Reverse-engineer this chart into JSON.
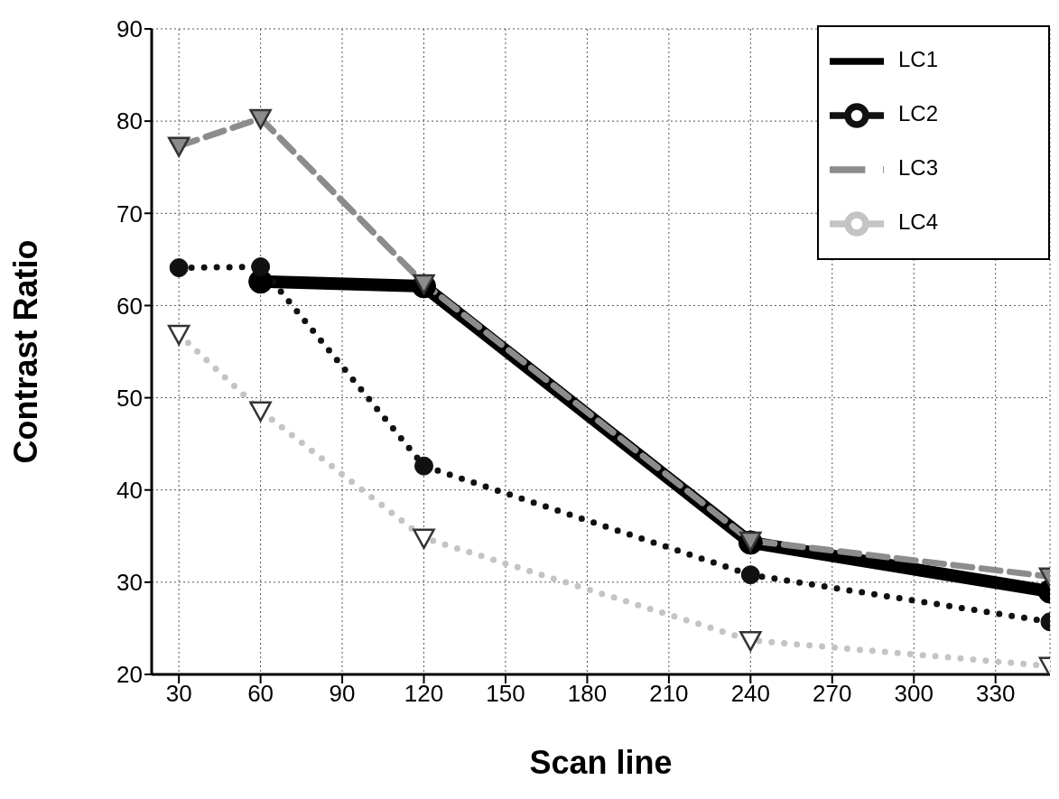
{
  "chart_data": {
    "type": "line",
    "xlabel": "Scan line",
    "ylabel": "Contrast Ratio",
    "xlim": [
      20,
      350
    ],
    "xticks": [
      30,
      60,
      90,
      120,
      150,
      180,
      210,
      240,
      270,
      300,
      330
    ],
    "ylim": [
      20,
      90
    ],
    "yticks": [
      20,
      30,
      40,
      50,
      60,
      70,
      80,
      90
    ],
    "grid": true,
    "legend": "top right",
    "series": [
      {
        "name": "LC1",
        "color": "#000000",
        "x": [
          60,
          120,
          240,
          350
        ],
        "values": [
          62.6,
          62.1,
          34.3,
          29.0
        ],
        "marker": "circle",
        "line_style": "solid"
      },
      {
        "name": "LC2",
        "color": "#111111",
        "x": [
          30,
          60,
          120,
          240,
          350
        ],
        "values": [
          64.1,
          64.2,
          42.6,
          30.8,
          25.7
        ],
        "marker": "circle",
        "line_style": "dotted"
      },
      {
        "name": "LC3",
        "color": "#8c8c8c",
        "x": [
          30,
          60,
          120,
          240,
          350
        ],
        "values": [
          77.3,
          80.3,
          62.4,
          34.5,
          30.6
        ],
        "marker": "triangle",
        "line_style": "dashed"
      },
      {
        "name": "LC4",
        "color": "#c4c4c4",
        "x": [
          30,
          60,
          120,
          240,
          350
        ],
        "values": [
          56.9,
          48.6,
          34.8,
          23.7,
          20.9
        ],
        "marker": "triangle",
        "line_style": "dotted"
      }
    ]
  }
}
